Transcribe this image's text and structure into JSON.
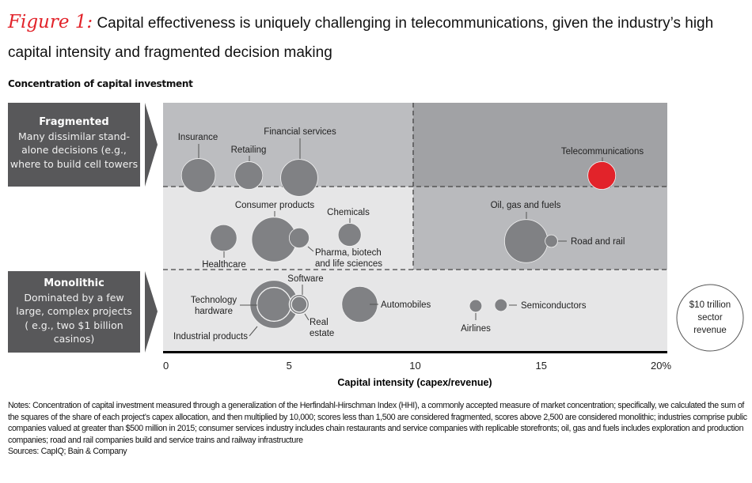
{
  "figure_label": "Figure 1:",
  "title": "Capital effectiveness is uniquely challenging in telecommunications, given the industry’s high capital intensity and fragmented decision making",
  "colors": {
    "accent": "#e2232a",
    "bubble": "#808184",
    "box": "#58585a"
  },
  "chart_data": {
    "type": "scatter",
    "subtype": "bubble",
    "ylabel": "Concentration of capital investment",
    "xlabel": "Capital intensity (capex/revenue)",
    "xlim": [
      0,
      20
    ],
    "x_ticks": [
      "0",
      "5",
      "10",
      "15",
      "20%"
    ],
    "y_bands": [
      {
        "title": "Fragmented",
        "text": "Many dissimilar stand-alone decisions (e.g., where to build cell towers"
      },
      {
        "title": "",
        "text": ""
      },
      {
        "title": "Monolithic",
        "text": "Dominated by a few large, complex projects ( e.g., two $1 billion casinos)"
      }
    ],
    "size_legend": "$10 trillion sector revenue",
    "size_unit": "$ trillion revenue",
    "series": [
      {
        "name": "Insurance",
        "x": 1.4,
        "band": "Fragmented",
        "size": 2.6
      },
      {
        "name": "Retailing",
        "x": 3.4,
        "band": "Fragmented",
        "size": 1.75
      },
      {
        "name": "Financial services",
        "x": 5.4,
        "band": "Fragmented",
        "size": 3.1
      },
      {
        "name": "Telecommunications",
        "x": 17.4,
        "band": "Fragmented",
        "size": 1.75,
        "highlight": true
      },
      {
        "name": "Healthcare",
        "x": 2.4,
        "band": "Middle",
        "size": 1.6
      },
      {
        "name": "Consumer products",
        "x": 4.4,
        "band": "Middle",
        "size": 4.5
      },
      {
        "name": "Pharma, biotech and life sciences",
        "x": 5.4,
        "band": "Middle",
        "size": 0.9
      },
      {
        "name": "Chemicals",
        "x": 7.4,
        "band": "Middle",
        "size": 1.2
      },
      {
        "name": "Oil, gas and fuels",
        "x": 14.4,
        "band": "Middle",
        "size": 4.2
      },
      {
        "name": "Road and rail",
        "x": 15.4,
        "band": "Middle",
        "size": 0.35
      },
      {
        "name": "Industrial products",
        "x": 4.4,
        "band": "Monolithic",
        "size": 5.2
      },
      {
        "name": "Technology hardware",
        "x": 4.4,
        "band": "Monolithic",
        "size": 2.6
      },
      {
        "name": "Software",
        "x": 5.4,
        "band": "Monolithic",
        "size": 0.9
      },
      {
        "name": "Real estate",
        "x": 5.4,
        "band": "Monolithic",
        "size": 0.55
      },
      {
        "name": "Automobiles",
        "x": 7.8,
        "band": "Monolithic",
        "size": 2.9
      },
      {
        "name": "Airlines",
        "x": 12.4,
        "band": "Monolithic",
        "size": 0.35
      },
      {
        "name": "Semiconductors",
        "x": 13.4,
        "band": "Monolithic",
        "size": 0.35
      }
    ]
  },
  "notes": "Notes: Concentration of capital investment measured through a generalization of the Herfindahl-Hirschman Index (HHI), a commonly accepted measure of market concentration; specifically, we calculated the sum of the squares of the share of each project’s capex allocation, and then multiplied by 10,000; scores less than 1,500 are considered fragmented, scores above 2,500 are considered monolithic; industries comprise public companies valued at greater than $500 million in 2015; consumer services industry includes chain restaurants and service companies with replicable storefronts; oil, gas and fuels includes exploration and production companies; road and rail companies build and service trains and railway infrastructure",
  "sources": "Sources: CapIQ; Bain & Company"
}
